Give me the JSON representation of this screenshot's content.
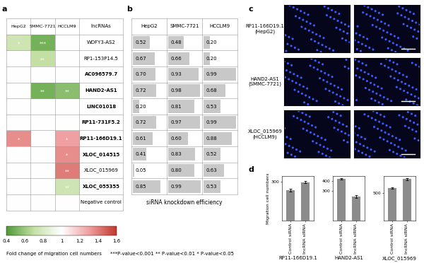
{
  "panel_labels": [
    "a",
    "b",
    "c",
    "d"
  ],
  "chart_data": [
    {
      "type": "heatmap",
      "columns": [
        "HepG2",
        "SMMC-7721",
        "HCCLM9"
      ],
      "row_header": "lncRNAs",
      "rows": [
        "WDFY3-AS2",
        "RP1-153P14.5",
        "AC096579.7",
        "HAND2-AS1",
        "LINC01018",
        "RP11-731F5.2",
        "RP11-166D19.1",
        "XLOC_014515",
        "XLOC_015969",
        "XLOC_055355",
        "Negative control"
      ],
      "bold": [
        false,
        false,
        true,
        true,
        true,
        true,
        true,
        true,
        false,
        true,
        false
      ],
      "cells": [
        [
          0.75,
          0.5,
          1.0
        ],
        [
          1.0,
          0.7,
          1.0
        ],
        [
          1.0,
          1.0,
          1.0
        ],
        [
          1.0,
          0.5,
          0.55
        ],
        [
          1.0,
          1.0,
          1.0
        ],
        [
          1.0,
          1.0,
          1.0
        ],
        [
          1.35,
          1.0,
          1.3
        ],
        [
          1.0,
          1.0,
          1.35
        ],
        [
          1.0,
          1.0,
          1.4
        ],
        [
          1.0,
          1.0,
          0.75
        ],
        [
          1.0,
          1.0,
          1.0
        ]
      ],
      "significance": [
        [
          "*",
          "***",
          null
        ],
        [
          null,
          "**",
          null
        ],
        [
          null,
          null,
          null
        ],
        [
          null,
          "**",
          "**"
        ],
        [
          null,
          null,
          null
        ],
        [
          null,
          null,
          null
        ],
        [
          "*",
          null,
          "*"
        ],
        [
          null,
          null,
          "*"
        ],
        [
          null,
          null,
          "**"
        ],
        [
          null,
          null,
          "**"
        ],
        [
          null,
          null,
          null
        ]
      ],
      "colorbar": {
        "label": "Fold change of migration cell numbers",
        "range": [
          0.4,
          1.6
        ],
        "ticks": [
          0.4,
          0.6,
          0.8,
          1,
          1.2,
          1.4,
          1.6
        ]
      },
      "note": "***P-value<0.001 ** P-value<0.01 * P-value<0.05"
    },
    {
      "type": "bar",
      "orientation": "horizontal",
      "xlabel": "siRNA knockdown efficiency",
      "xlim": [
        0,
        1
      ],
      "data_labels": true,
      "color": "#c8c8c8",
      "series": [
        {
          "name": "HepG2",
          "values": [
            0.52,
            0.67,
            0.7,
            0.72,
            0.2,
            0.72,
            0.61,
            0.41,
            0.05,
            0.85
          ],
          "value_labels": [
            "0.52",
            "0.67",
            "0.70",
            "0.72",
            "0.20",
            "0.72",
            "0.61",
            "0.41",
            "0.05",
            "0.85"
          ]
        },
        {
          "name": "SMMC-7721",
          "values": [
            0.48,
            0.66,
            0.93,
            0.98,
            0.81,
            0.97,
            0.6,
            0.83,
            0.8,
            0.99
          ],
          "value_labels": [
            "0.48",
            "0.66",
            "0.93",
            "0.98",
            "0.81",
            "0.97",
            "0.60",
            "0.83",
            "0.80",
            "0.99"
          ]
        },
        {
          "name": "HCCLM9",
          "values": [
            0.2,
            0.2,
            0.99,
            0.68,
            0.53,
            0.99,
            0.88,
            0.52,
            0.63,
            0.53
          ],
          "value_labels": [
            "0.20",
            "0.20",
            "0.99",
            "0.68",
            "0.53",
            "0.99",
            "0.88",
            "0.52",
            "0.63",
            "0.53"
          ]
        }
      ]
    },
    {
      "type": "bar",
      "xlabel": "RP11-166D19.1",
      "ylabel": "Migration cell numbers",
      "color": "#8c8c8c",
      "categories": [
        "Control siRNA",
        "lncRNA siRNA"
      ],
      "values": [
        235,
        295
      ],
      "errors": [
        10,
        8
      ],
      "ylim": [
        0,
        340
      ],
      "yticks": [
        300
      ]
    },
    {
      "type": "bar",
      "xlabel": "HAND2-AS1",
      "color": "#8c8c8c",
      "categories": [
        "Control siRNA",
        "lncRNA siRNA"
      ],
      "values": [
        425,
        245
      ],
      "errors": [
        8,
        15
      ],
      "ylim": [
        0,
        450
      ],
      "yticks": [
        300,
        400
      ]
    },
    {
      "type": "bar",
      "xlabel": "XLOC_015969",
      "color": "#8c8c8c",
      "categories": [
        "Control siRNA",
        "lncRNA siRNA"
      ],
      "values": [
        585,
        750
      ],
      "errors": [
        15,
        20
      ],
      "ylim": [
        0,
        800
      ],
      "yticks": [
        500
      ]
    }
  ],
  "images": [
    {
      "label": "RP11-166D19.1\n(HepG2)"
    },
    {
      "label": "HAND2-AS1\n(SMMC-7721)"
    },
    {
      "label": "XLOC_015969\n(HCCLM9)"
    }
  ]
}
